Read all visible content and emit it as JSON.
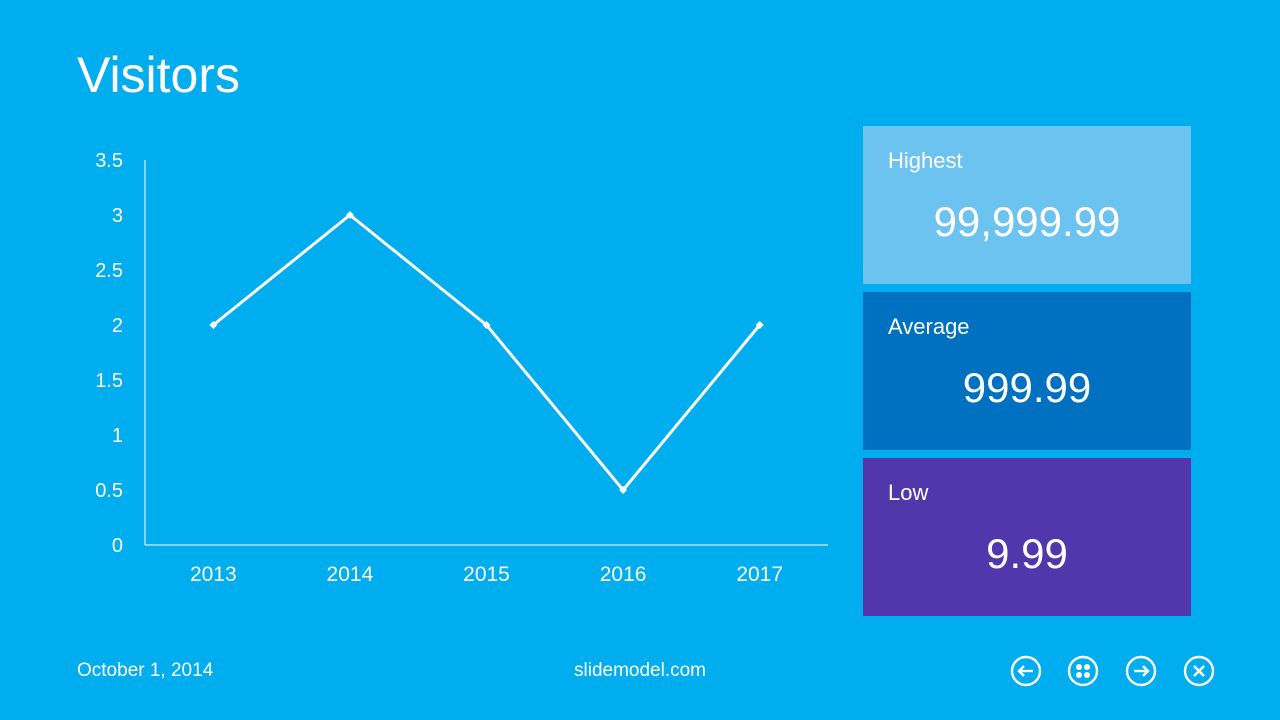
{
  "slide": {
    "title": "Visitors",
    "footer": {
      "date": "October 1, 2014",
      "website": "slidemodel.com"
    }
  },
  "stats": {
    "highest": {
      "label": "Highest",
      "value": "99,999.99",
      "color": "#6DC3F0"
    },
    "average": {
      "label": "Average",
      "value": "999.99",
      "color": "#0070C0"
    },
    "low": {
      "label": "Low",
      "value": "9.99",
      "color": "#5236AB"
    }
  },
  "navigation": {
    "icons": [
      "arrow-left-icon",
      "grid-icon",
      "arrow-right-icon",
      "close-icon"
    ]
  },
  "colors": {
    "background": "#00AEEF",
    "line": "#FFFFFF"
  },
  "chart_data": {
    "type": "line",
    "categories": [
      "2013",
      "2014",
      "2015",
      "2016",
      "2017"
    ],
    "series": [
      {
        "values": [
          2,
          3,
          2,
          0.5,
          2
        ]
      }
    ],
    "ylim": [
      0,
      3.5
    ],
    "yticks": [
      0,
      0.5,
      1,
      1.5,
      2,
      2.5,
      3,
      3.5
    ],
    "ytick_labels": [
      "0",
      "0.5",
      "1",
      "1.5",
      "2",
      "2.5",
      "3",
      "3.5"
    ],
    "grid": false,
    "legend": "none"
  }
}
